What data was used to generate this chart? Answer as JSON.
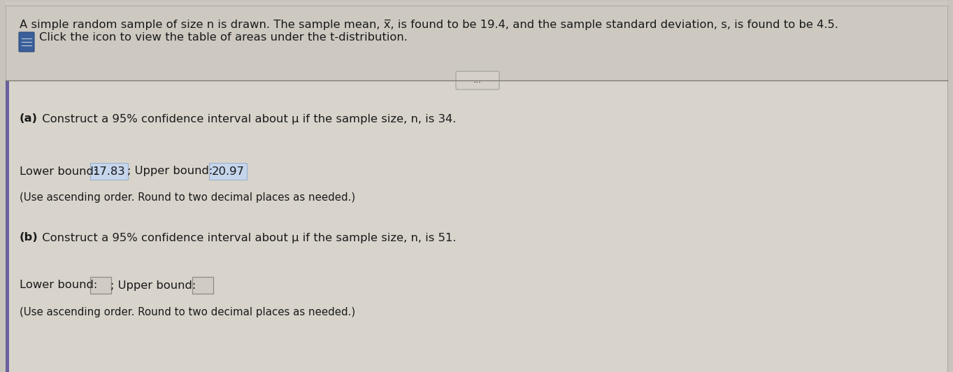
{
  "bg_outer": "#c8c4bc",
  "bg_top": "#cdc9c1",
  "bg_main": "#d8d4cc",
  "panel_color": "#dedad2",
  "title_line1": "A simple random sample of size n is drawn. The sample mean, x̅, is found to be 19.4, and the sample standard deviation, s, is found to be 4.5.",
  "title_line2": "Click the icon to view the table of areas under the t-distribution.",
  "part_a_label": "(a)",
  "part_a_text": " Construct a 95% confidence interval about μ if the sample size, n, is 34.",
  "part_a_lower_prefix": "Lower bound: ",
  "part_a_lower_value": "17.83",
  "part_a_sep": "; Upper bound: ",
  "part_a_upper_value": "20.97",
  "part_a_note": "(Use ascending order. Round to two decimal places as needed.)",
  "part_b_label": "(b)",
  "part_b_text": " Construct a 95% confidence interval about μ if the sample size, n, is 51.",
  "part_b_lower_prefix": "Lower bound: ",
  "part_b_sep": "; Upper bound: ",
  "part_b_note": "(Use ascending order. Round to two decimal places as needed.)",
  "btn_text": "...",
  "icon_color": "#3a5f9a",
  "icon_edge": "#2a4a80",
  "text_color": "#1a1a1a",
  "highlight_bg": "#c5d5ec",
  "highlight_edge": "#9ab0cc",
  "empty_box_bg": "#d0ccc4",
  "empty_box_edge": "#908c84",
  "divider_color": "#807c74",
  "left_accent_color": "#6b5fa0",
  "font_size": 11.8,
  "font_size_small": 10.8
}
